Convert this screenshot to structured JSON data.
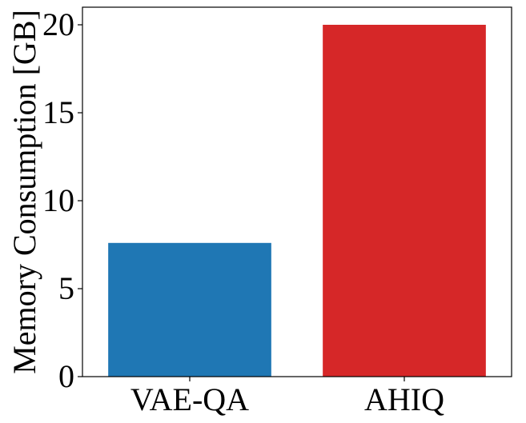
{
  "chart_data": {
    "type": "bar",
    "title": "",
    "xlabel": "",
    "ylabel": "Memory Consumption [GB]",
    "categories": [
      "VAE-QA",
      "AHIQ"
    ],
    "values": [
      7.6,
      20.0
    ],
    "bar_colors": [
      "#1f77b4",
      "#d62728"
    ],
    "ylim": [
      0,
      21
    ],
    "yticks": [
      0,
      5,
      10,
      15,
      20
    ],
    "ytick_labels": [
      "0",
      "5",
      "10",
      "15",
      "20"
    ],
    "grid": false,
    "legend": "none"
  }
}
